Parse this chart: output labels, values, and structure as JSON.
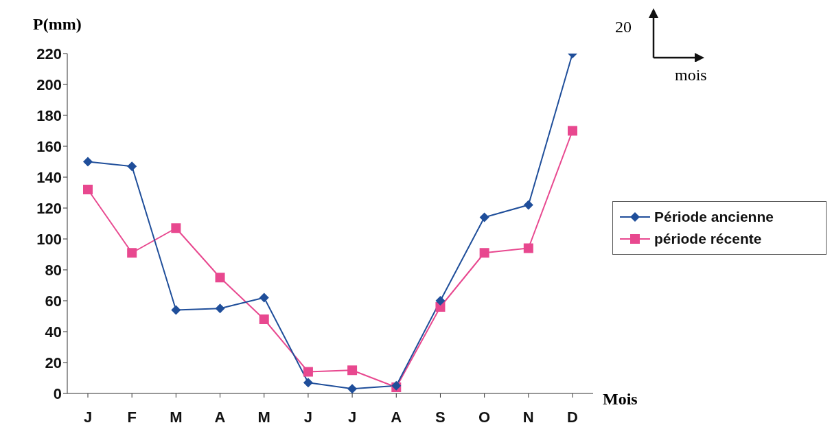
{
  "chart_data": {
    "type": "line",
    "ylabel": "P(mm)",
    "xlabel": "Mois",
    "categories": [
      "J",
      "F",
      "M",
      "A",
      "M",
      "J",
      "J",
      "A",
      "S",
      "O",
      "N",
      "D"
    ],
    "series": [
      {
        "name": "Période ancienne",
        "color": "#1f4e9a",
        "marker": "diamond",
        "values": [
          150,
          147,
          54,
          55,
          62,
          7,
          3,
          5,
          60,
          114,
          122,
          220
        ]
      },
      {
        "name": "période récente",
        "color": "#e8488f",
        "marker": "square",
        "values": [
          132,
          91,
          107,
          75,
          48,
          14,
          15,
          4,
          56,
          91,
          94,
          170
        ]
      }
    ],
    "ylim": [
      0,
      220
    ],
    "yticks": [
      0,
      20,
      40,
      60,
      80,
      100,
      120,
      140,
      160,
      180,
      200,
      220
    ],
    "legend": "right",
    "grid": false,
    "annotations": [
      "20",
      "mois"
    ]
  }
}
